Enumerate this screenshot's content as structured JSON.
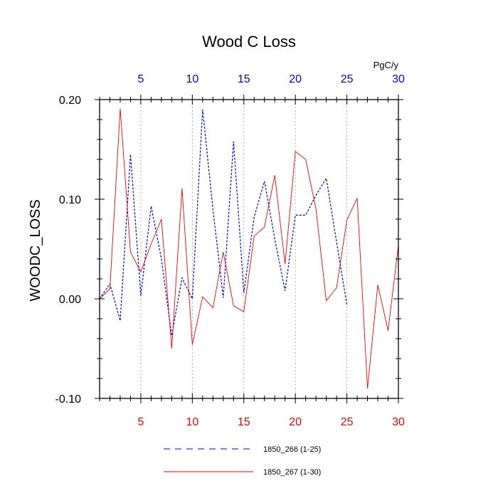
{
  "chart_data": {
    "type": "line",
    "title": "Wood C Loss",
    "ylabel": "WOODC_LOSS",
    "units": "PgC/y",
    "ylim": [
      -0.1,
      0.2
    ],
    "yticks": [
      "-0.10",
      "0.00",
      "0.10",
      "0.20"
    ],
    "xlim_bottom": [
      1,
      30
    ],
    "xlim_top": [
      1,
      30
    ],
    "xticks_bottom": [
      "5",
      "10",
      "15",
      "20",
      "25",
      "30"
    ],
    "xticks_top": [
      "5",
      "10",
      "15",
      "20",
      "25",
      "30"
    ],
    "grid": "vertical-dotted",
    "legend_position": "bottom",
    "colors": {
      "bottom_axis": "#ff0000",
      "top_axis": "#0000ff",
      "series_red": "#ff0000",
      "series_blue": "#0000ff"
    },
    "series": [
      {
        "name": "1850_266 (1-25)",
        "color": "#0000ff",
        "style": "dashed",
        "x": [
          1,
          2,
          3,
          4,
          5,
          6,
          7,
          8,
          9,
          10,
          11,
          12,
          13,
          14,
          15,
          16,
          17,
          18,
          19,
          20,
          21,
          22,
          23,
          24,
          25
        ],
        "values": [
          0.0,
          0.015,
          -0.022,
          0.145,
          0.003,
          0.093,
          0.04,
          -0.037,
          0.021,
          0.0,
          0.19,
          0.09,
          0.001,
          0.158,
          0.006,
          0.082,
          0.118,
          0.06,
          0.008,
          0.084,
          0.084,
          0.104,
          0.121,
          0.057,
          -0.006
        ]
      },
      {
        "name": "1850_267 (1-30)",
        "color": "#ff0000",
        "style": "solid",
        "x": [
          1,
          2,
          3,
          4,
          5,
          6,
          7,
          8,
          9,
          10,
          11,
          12,
          13,
          14,
          15,
          16,
          17,
          18,
          19,
          20,
          21,
          22,
          23,
          24,
          25,
          26,
          27,
          28,
          29,
          30
        ],
        "values": [
          0.0,
          0.01,
          0.191,
          0.047,
          0.027,
          0.055,
          0.08,
          -0.05,
          0.111,
          -0.046,
          0.002,
          -0.009,
          0.047,
          -0.007,
          -0.013,
          0.063,
          0.072,
          0.124,
          0.035,
          0.148,
          0.14,
          0.09,
          -0.002,
          0.011,
          0.079,
          0.101,
          -0.09,
          0.014,
          -0.032,
          0.054
        ]
      }
    ]
  }
}
